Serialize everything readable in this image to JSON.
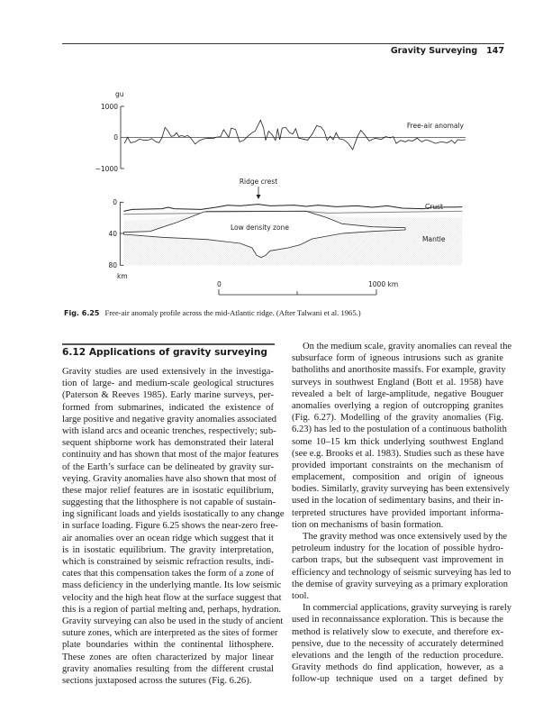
{
  "header": {
    "running_title": "Gravity Surveying",
    "page_number": "147"
  },
  "figure": {
    "anomaly_unit": "gu",
    "anomaly_ticks": [
      "1000",
      "0",
      "−1000"
    ],
    "anomaly_label": "Free-air anomaly",
    "ridge_label": "Ridge crest",
    "depth_ticks": [
      "0",
      "40",
      "80"
    ],
    "depth_unit": "km",
    "crust_label": "Crust",
    "mantle_label": "Mantle",
    "ldz_label": "Low density zone",
    "scale_start": "0",
    "scale_end": "1000 km",
    "caption_number": "Fig. 6.25",
    "caption_text": "Free-air anomaly profile across the mid-Atlantic ridge. (After Talwani et al. 1965.)"
  },
  "section": {
    "heading": "6.12  Applications of gravity surveying",
    "left_paragraphs": [
      [
        "Gravity studies are used extensively in the investiga-",
        "tion of large- and medium-scale geological structures",
        "(Paterson & Reeves 1985). Early marine surveys, per-",
        "formed from submarines, indicated the existence of",
        "large positive and negative gravity anomalies associated",
        "with island arcs and oceanic trenches, respectively; sub-",
        "sequent shipborne work has demonstrated their lateral",
        "continuity and has shown that most of the major features",
        "of the Earth’s surface can be delineated by gravity sur-",
        "veying. Gravity anomalies have also shown that most of",
        "these major relief features are in isostatic equilibrium,",
        "suggesting that the lithosphere is not capable of sustain-",
        "ing significant loads and yields isostatically to any change",
        "in surface loading. Figure 6.25 shows the near-zero free-",
        "air anomalies over an ocean ridge which suggest that it",
        "is in isostatic equilibrium. The gravity interpretation,",
        "which is constrained by seismic refraction results, indi-",
        "cates that this compensation takes the form of a zone of",
        "mass deficiency in the underlying mantle. Its low seismic",
        "velocity and the high heat flow at the surface suggest that",
        "this is a region of partial melting and, perhaps, hydration.",
        "Gravity surveying can also be used in the study of ancient",
        "suture zones, which are interpreted as the sites of former",
        "plate boundaries within the continental lithosphere.",
        "These zones are often characterized by major linear",
        "gravity anomalies resulting from the different crustal",
        "sections juxtaposed across the sutures (Fig. 6.26)."
      ]
    ],
    "right_paragraphs": [
      [
        "On the medium scale, gravity anomalies can reveal the",
        "subsurface form of igneous intrusions such as granite",
        "batholiths and anorthosite massifs. For example, gravity",
        "surveys in southwest England (Bott et al. 1958) have",
        "revealed a belt of large-amplitude, negative Bouguer",
        "anomalies overlying a region of outcropping granites",
        "(Fig. 6.27). Modelling of the gravity anomalies (Fig.",
        "6.23) has led to the postulation of a continuous batholith",
        "some 10–15 km thick underlying southwest England",
        "(see e.g. Brooks et al. 1983). Studies such as these have",
        "provided important constraints on the mechanism of",
        "emplacement, composition and origin of igneous",
        "bodies. Similarly, gravity surveying has been extensively",
        "used in the location of sedimentary basins, and their in-",
        "terpreted structures have provided important informa-",
        "tion on mechanisms of basin formation."
      ],
      [
        "The gravity method was once extensively used by the",
        "petroleum industry for the location of possible hydro-",
        "carbon traps, but the subsequent vast improvement in",
        "efficiency and technology of seismic surveying has led to",
        "the demise of gravity surveying as a primary exploration",
        "tool."
      ],
      [
        "In commercial applications, gravity surveying is rarely",
        "used in reconnaissance exploration. This is because the",
        "method is relatively slow to execute, and therefore ex-",
        "pensive, due to the necessity of accurately determined",
        "elevations and the length of the reduction procedure.",
        "Gravity methods do find application, however, as a",
        "follow-up technique used on a target defined by"
      ]
    ]
  }
}
